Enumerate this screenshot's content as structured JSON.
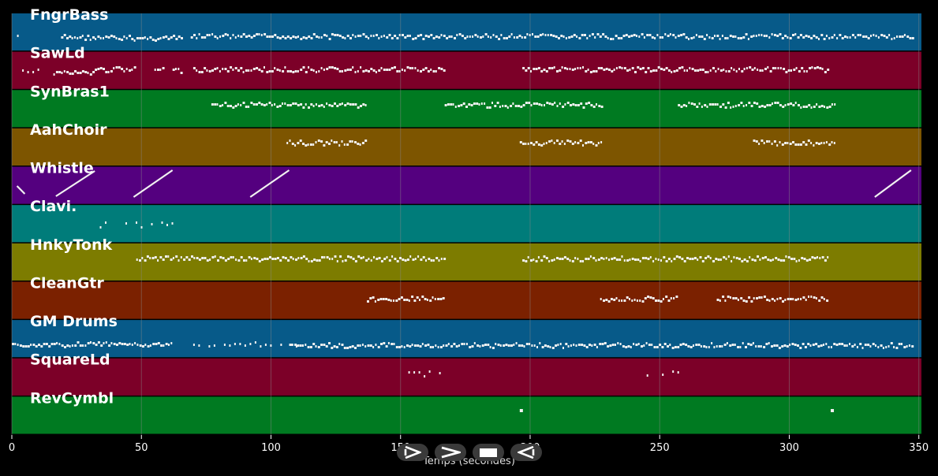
{
  "colors": {
    "background": "#000000",
    "grid": "#8a8a8a",
    "note": "#f1f1f1"
  },
  "transport": {
    "buttons": [
      {
        "name": "step-forward-button",
        "icon": "step-forward-icon"
      },
      {
        "name": "play-button",
        "icon": "play-icon"
      },
      {
        "name": "stop-button",
        "icon": "stop-icon"
      },
      {
        "name": "step-back-button",
        "icon": "step-back-icon"
      }
    ]
  },
  "chart_data": {
    "type": "piano-roll",
    "xlabel": "Temps (secondes)",
    "xlim": [
      0,
      351
    ],
    "xticks": [
      0,
      50,
      100,
      150,
      200,
      250,
      300,
      350
    ],
    "grid": true,
    "tracks": [
      {
        "name": "FngrBass",
        "color": "#075a89",
        "segments": [
          [
            2,
            5,
            "sparse",
            46
          ],
          [
            9,
            10,
            "sparse",
            46
          ],
          [
            19,
            32,
            "dense",
            48
          ],
          [
            32,
            66,
            "dense",
            49
          ],
          [
            69,
            348,
            "dense",
            47
          ]
        ]
      },
      {
        "name": "SawLd",
        "color": "#7c0028",
        "segments": [
          [
            2,
            10,
            "sparse",
            91
          ],
          [
            16,
            32,
            "dense",
            93
          ],
          [
            32,
            48,
            "dense",
            89
          ],
          [
            55,
            59,
            "dense",
            89
          ],
          [
            62,
            66,
            "dense",
            90
          ],
          [
            70,
            167,
            "dense",
            89
          ],
          [
            197,
            315,
            "dense",
            89
          ]
        ]
      },
      {
        "name": "SynBras1",
        "color": "#007a21",
        "segments": [
          [
            77,
            137,
            "dense",
            134
          ],
          [
            167,
            228,
            "dense",
            134
          ],
          [
            257,
            318,
            "dense",
            134
          ]
        ]
      },
      {
        "name": "AahChoir",
        "color": "#7d5500",
        "segments": [
          [
            106,
            137,
            "dense",
            182
          ],
          [
            196,
            228,
            "dense",
            182
          ],
          [
            286,
            318,
            "dense",
            182
          ]
        ]
      },
      {
        "name": "Whistle",
        "color": "#54007f",
        "segments": [
          [
            2,
            5,
            "diag",
            236,
            246
          ],
          [
            17,
            32,
            "diag",
            249,
            217
          ],
          [
            47,
            62,
            "diag",
            250,
            216
          ],
          [
            92,
            107,
            "diag",
            250,
            216
          ],
          [
            333,
            347,
            "diag",
            250,
            216
          ]
        ]
      },
      {
        "name": "Clavi.",
        "color": "#007c7a",
        "segments": [
          [
            30,
            62,
            "sparse",
            286
          ]
        ]
      },
      {
        "name": "HnkyTonk",
        "color": "#7d7c00",
        "segments": [
          [
            48,
            167,
            "dense",
            329
          ],
          [
            197,
            315,
            "dense",
            329
          ]
        ]
      },
      {
        "name": "CleanGtr",
        "color": "#7b2100",
        "segments": [
          [
            137,
            167,
            "dense",
            380
          ],
          [
            227,
            257,
            "dense",
            380
          ],
          [
            272,
            315,
            "dense",
            380
          ]
        ]
      },
      {
        "name": "GM Drums",
        "color": "#075a89",
        "segments": [
          [
            0,
            62,
            "dense",
            438
          ],
          [
            70,
            110,
            "sparse",
            438
          ],
          [
            107,
            348,
            "dense",
            439
          ]
        ]
      },
      {
        "name": "SquareLd",
        "color": "#7c0028",
        "segments": [
          [
            153,
            167,
            "sparse",
            475
          ],
          [
            243,
            257,
            "sparse",
            475
          ]
        ]
      },
      {
        "name": "RevCymbl",
        "color": "#007a21",
        "segments": [
          [
            196,
            197,
            "dot",
            521
          ],
          [
            316,
            317,
            "dot",
            521
          ]
        ]
      }
    ]
  }
}
